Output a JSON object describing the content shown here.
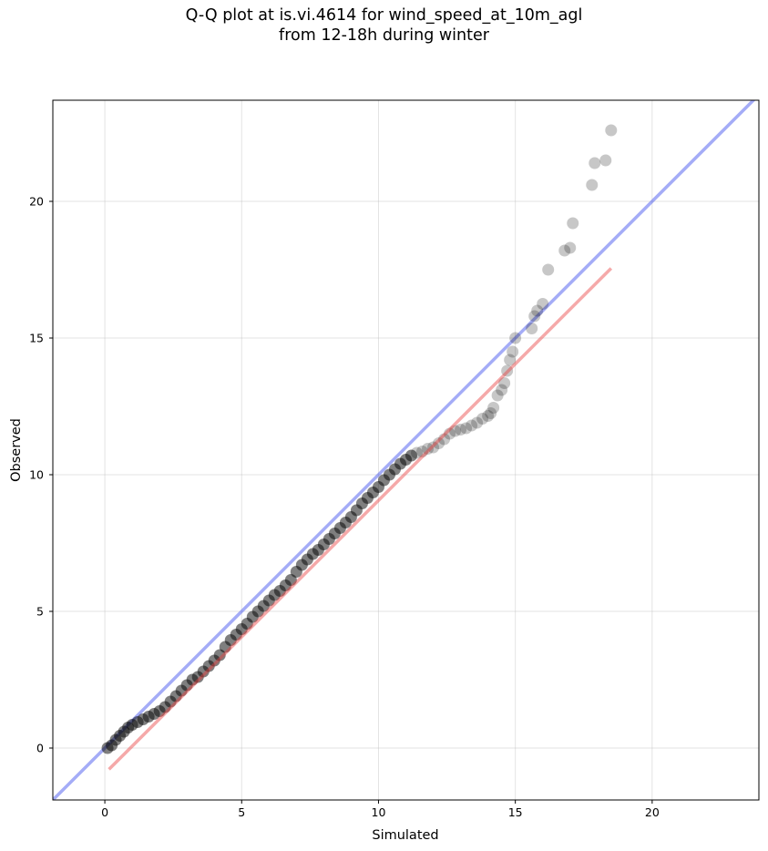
{
  "chart_data": {
    "type": "scatter",
    "title_line1": "Q-Q plot at is.vi.4614 for wind_speed_at_10m_agl",
    "title_line2": "from 12-18h during winter",
    "xlabel": "Simulated",
    "ylabel": "Observed",
    "xlim": [
      -1.9,
      23.9
    ],
    "ylim": [
      -1.9,
      23.7
    ],
    "xticks": [
      0,
      5,
      10,
      15,
      20
    ],
    "yticks": [
      0,
      5,
      10,
      15,
      20
    ],
    "grid": true,
    "identity_line": {
      "color": "#4a5af0"
    },
    "fit_line": {
      "x": [
        0.15,
        18.5
      ],
      "y": [
        -0.78,
        17.55
      ],
      "color": "#e84040"
    },
    "series": [
      {
        "role": "bulk quantiles",
        "color": "#000000",
        "x": [
          0.1,
          0.25,
          0.4,
          0.55,
          0.7,
          0.85,
          1.0,
          1.2,
          1.4,
          1.6,
          1.8,
          2.0,
          2.2,
          2.4,
          2.6,
          2.8,
          3.0,
          3.2,
          3.4,
          3.6,
          3.8,
          4.0,
          4.2,
          4.4,
          4.6,
          4.8,
          5.0,
          5.2,
          5.4,
          5.6,
          5.8,
          6.0,
          6.2,
          6.4,
          6.6,
          6.8,
          7.0,
          7.2,
          7.4,
          7.6,
          7.8,
          8.0,
          8.2,
          8.4,
          8.6,
          8.8,
          9.0,
          9.2,
          9.4,
          9.6,
          9.8,
          10.0,
          10.2,
          10.4,
          10.6,
          10.8,
          11.0,
          11.2
        ],
        "y": [
          0.0,
          0.1,
          0.3,
          0.45,
          0.6,
          0.75,
          0.85,
          0.95,
          1.05,
          1.15,
          1.25,
          1.35,
          1.5,
          1.7,
          1.9,
          2.1,
          2.3,
          2.5,
          2.6,
          2.8,
          3.0,
          3.2,
          3.4,
          3.7,
          3.95,
          4.15,
          4.35,
          4.55,
          4.8,
          5.0,
          5.2,
          5.4,
          5.6,
          5.75,
          5.95,
          6.15,
          6.45,
          6.7,
          6.9,
          7.1,
          7.25,
          7.45,
          7.65,
          7.85,
          8.05,
          8.25,
          8.45,
          8.7,
          8.95,
          9.15,
          9.35,
          9.55,
          9.8,
          10.0,
          10.2,
          10.4,
          10.55,
          10.7
        ]
      },
      {
        "role": "upper tail quantiles",
        "color": "#000000",
        "x": [
          11.4,
          11.6,
          11.8,
          12.0,
          12.2,
          12.4,
          12.6,
          12.8,
          13.0,
          13.2,
          13.4,
          13.6,
          13.8,
          14.0,
          14.1,
          14.2,
          14.35,
          14.5,
          14.6,
          14.7,
          14.8,
          14.9,
          15.0,
          15.6,
          15.7,
          15.8,
          16.0,
          16.2,
          16.8,
          17.0,
          17.1,
          17.8,
          17.9,
          18.3,
          18.5
        ],
        "y": [
          10.8,
          10.85,
          10.95,
          11.0,
          11.15,
          11.3,
          11.5,
          11.6,
          11.65,
          11.7,
          11.8,
          11.9,
          12.05,
          12.15,
          12.25,
          12.45,
          12.9,
          13.1,
          13.35,
          13.8,
          14.2,
          14.5,
          15.0,
          15.35,
          15.8,
          16.0,
          16.25,
          17.5,
          18.2,
          18.3,
          19.2,
          20.6,
          21.4,
          21.5,
          22.6
        ]
      }
    ]
  }
}
